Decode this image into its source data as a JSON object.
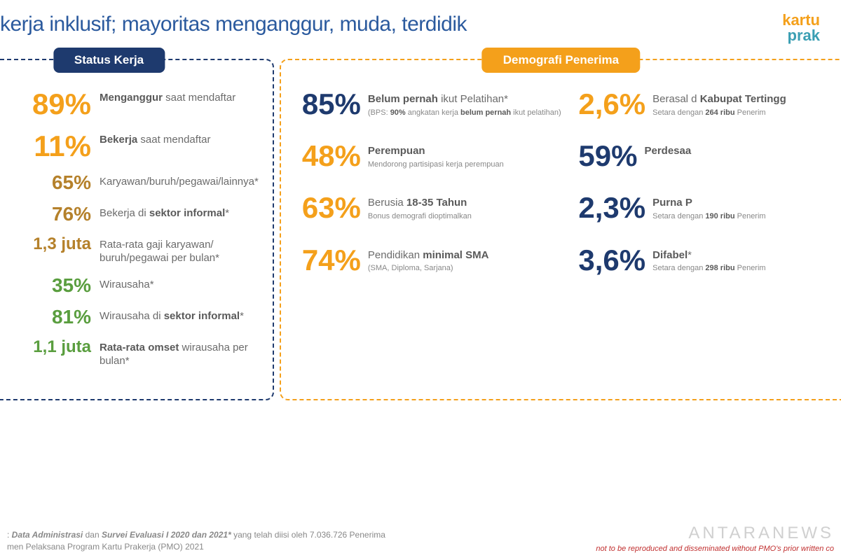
{
  "title": "kerja inklusif; mayoritas menganggur, muda, terdidik",
  "logo": {
    "top": "kartu",
    "bottom": "prak"
  },
  "left": {
    "tag": "Status Kerja",
    "items": [
      {
        "value": "89%",
        "color": "c-orange",
        "size": "big",
        "label": "<b>Menganggur</b> saat mendaftar"
      },
      {
        "value": "11%",
        "color": "c-orange",
        "size": "big",
        "label": "<b>Bekerja</b> saat mendaftar"
      },
      {
        "value": "65%",
        "color": "c-brown",
        "size": "",
        "label": "Karyawan/buruh/pegawai/lainnya*"
      },
      {
        "value": "76%",
        "color": "c-brown",
        "size": "",
        "label": "Bekerja di <b>sektor informal</b>*"
      },
      {
        "value": "1,3 juta",
        "color": "c-brown",
        "size": "small",
        "label": "Rata-rata gaji karyawan/ buruh/pegawai per bulan*"
      },
      {
        "value": "35%",
        "color": "c-green",
        "size": "",
        "label": "Wirausaha*"
      },
      {
        "value": "81%",
        "color": "c-green",
        "size": "",
        "label": "Wirausaha di <b>sektor informal</b>*"
      },
      {
        "value": "1,1 juta",
        "color": "c-green",
        "size": "small",
        "label": "<b>Rata-rata omset</b> wirausaha per bulan*"
      }
    ]
  },
  "right": {
    "tag": "Demografi Penerima",
    "items": [
      {
        "value": "85%",
        "color": "c-navy",
        "label": "<b>Belum pernah</b> ikut Pelatihan*",
        "sub": "(BPS: <b>90%</b> angkatan kerja <b>belum pernah</b> ikut pelatihan)"
      },
      {
        "value": "2,6%",
        "color": "c-orange",
        "label": "Berasal d <b>Kabupat Tertingg</b>",
        "sub": "Setara dengan <b>264 ribu</b> Penerim"
      },
      {
        "value": "48%",
        "color": "c-orange",
        "label": "<b>Perempuan</b>",
        "sub": "Mendorong partisipasi kerja perempuan"
      },
      {
        "value": "59%",
        "color": "c-navy",
        "label": "<b>Perdesaa</b>",
        "sub": ""
      },
      {
        "value": "63%",
        "color": "c-orange",
        "label": "Berusia <b>18-35 Tahun</b>",
        "sub": "Bonus demografi dioptimalkan"
      },
      {
        "value": "2,3%",
        "color": "c-navy",
        "label": "<b>Purna P</b>",
        "sub": "Setara dengan <b>190 ribu</b> Penerim"
      },
      {
        "value": "74%",
        "color": "c-orange",
        "label": "Pendidikan <b>minimal SMA</b>",
        "sub": "(SMA, Diploma, Sarjana)"
      },
      {
        "value": "3,6%",
        "color": "c-navy",
        "label": "<b>Difabel</b>*",
        "sub": "Setara dengan <b>298 ribu</b> Penerim"
      }
    ]
  },
  "footer": {
    "line1": ": <i><b>Data Administrasi</b></i> dan <i><b>Survei Evaluasi I 2020 dan 2021*</b></i> yang telah diisi oleh 7.036.726 Penerima",
    "line2": "men Pelaksana Program Kartu Prakerja (PMO) 2021",
    "watermark": "ANTARANEWS",
    "red": "not to be reproduced and disseminated without PMO's prior written co"
  }
}
